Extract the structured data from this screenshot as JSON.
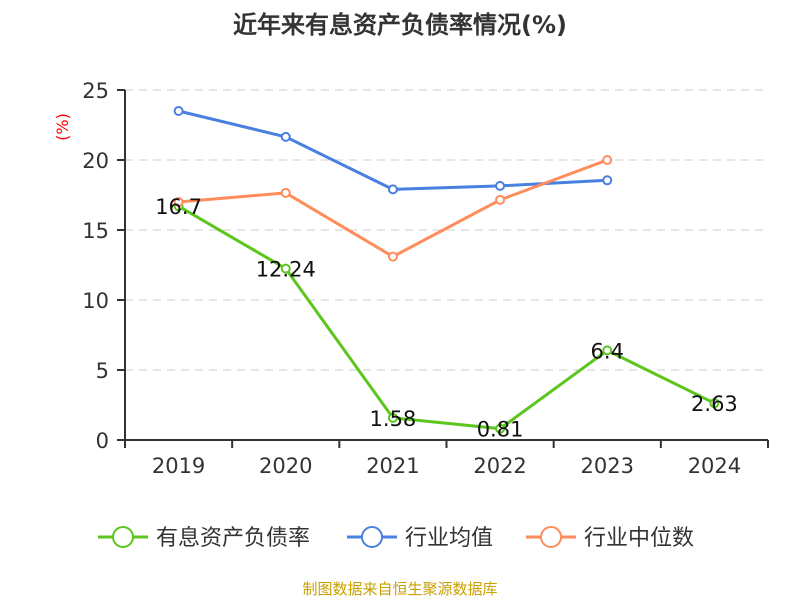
{
  "chart_data": {
    "type": "line",
    "title": "近年来有息资产负债率情况(%)",
    "ylabel": "(%)",
    "categories": [
      "2019",
      "2020",
      "2021",
      "2022",
      "2023",
      "2024"
    ],
    "ylim": [
      0,
      25
    ],
    "yticks": [
      0,
      5,
      10,
      15,
      20,
      25
    ],
    "grid": true,
    "legend_position": "bottom",
    "series": [
      {
        "name": "有息资产负债率",
        "color": "#5cc51e",
        "values": [
          16.7,
          12.24,
          1.58,
          0.81,
          6.4,
          2.63
        ],
        "labels": [
          "16.7",
          "12.24",
          "1.58",
          "0.81",
          "6.4",
          "2.63"
        ]
      },
      {
        "name": "行业均值",
        "color": "#4a80e0",
        "values": [
          23.5,
          21.65,
          17.9,
          18.15,
          18.55,
          null
        ]
      },
      {
        "name": "行业中位数",
        "color": "#ff8c5a",
        "values": [
          17.0,
          17.65,
          13.1,
          17.15,
          20.0,
          null
        ]
      }
    ]
  },
  "source": "制图数据来自恒生聚源数据库",
  "colors": {
    "ylabel": "#ff0000",
    "source": "#c8a000"
  }
}
